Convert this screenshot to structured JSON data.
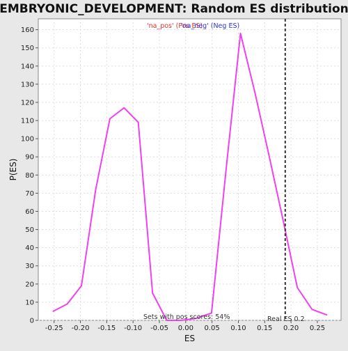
{
  "chart_data": {
    "type": "line",
    "title": "EMBRYONIC_DEVELOPMENT: Random ES distribution",
    "xlabel": "ES",
    "ylabel": "P(ES)",
    "xlim": [
      -0.28,
      0.295
    ],
    "ylim": [
      0,
      166
    ],
    "xticks": [
      -0.25,
      -0.2,
      -0.15,
      -0.1,
      -0.05,
      0.0,
      0.05,
      0.1,
      0.15,
      0.2,
      0.25
    ],
    "xtick_labels": [
      "-0.25",
      "-0.20",
      "-0.15",
      "-0.10",
      "-0.05",
      "0.00",
      "0.05",
      "0.10",
      "0.15",
      "0.20",
      "0.25"
    ],
    "yticks": [
      0,
      10,
      20,
      30,
      40,
      50,
      60,
      70,
      80,
      90,
      100,
      110,
      120,
      130,
      140,
      150,
      160
    ],
    "ytick_labels": [
      "0",
      "10",
      "20",
      "30",
      "40",
      "50",
      "60",
      "70",
      "80",
      "90",
      "100",
      "110",
      "120",
      "130",
      "140",
      "150",
      "160"
    ],
    "grid": true,
    "legend": [
      {
        "label": "'na_pos' (Pos ES)",
        "color": "#e03030"
      },
      {
        "label": "'na_neg' (Neg ES)",
        "color": "#3030e0"
      }
    ],
    "series": [
      {
        "color": "#f040f0",
        "x": [
          -0.252,
          -0.225,
          -0.198,
          -0.171,
          -0.144,
          -0.117,
          -0.09,
          -0.063,
          -0.036,
          -0.009,
          0.018,
          0.049,
          0.077,
          0.104,
          0.131,
          0.158,
          0.185,
          0.212,
          0.24,
          0.268
        ],
        "y": [
          5,
          9,
          19,
          72,
          111,
          117,
          109,
          15,
          0,
          0,
          1,
          4,
          84,
          158,
          126,
          91,
          55,
          18,
          6,
          3
        ]
      }
    ],
    "marker_line": {
      "x": 0.189,
      "label": "Real ES 0.2",
      "color": "#333333"
    },
    "annotation": "Sets with pos scores: 54%"
  },
  "colors": {
    "background": "#e8e8e8",
    "plot_background": "#ffffff",
    "grid": "#dddddd",
    "curve": "#f040f0",
    "marker": "#333333"
  }
}
